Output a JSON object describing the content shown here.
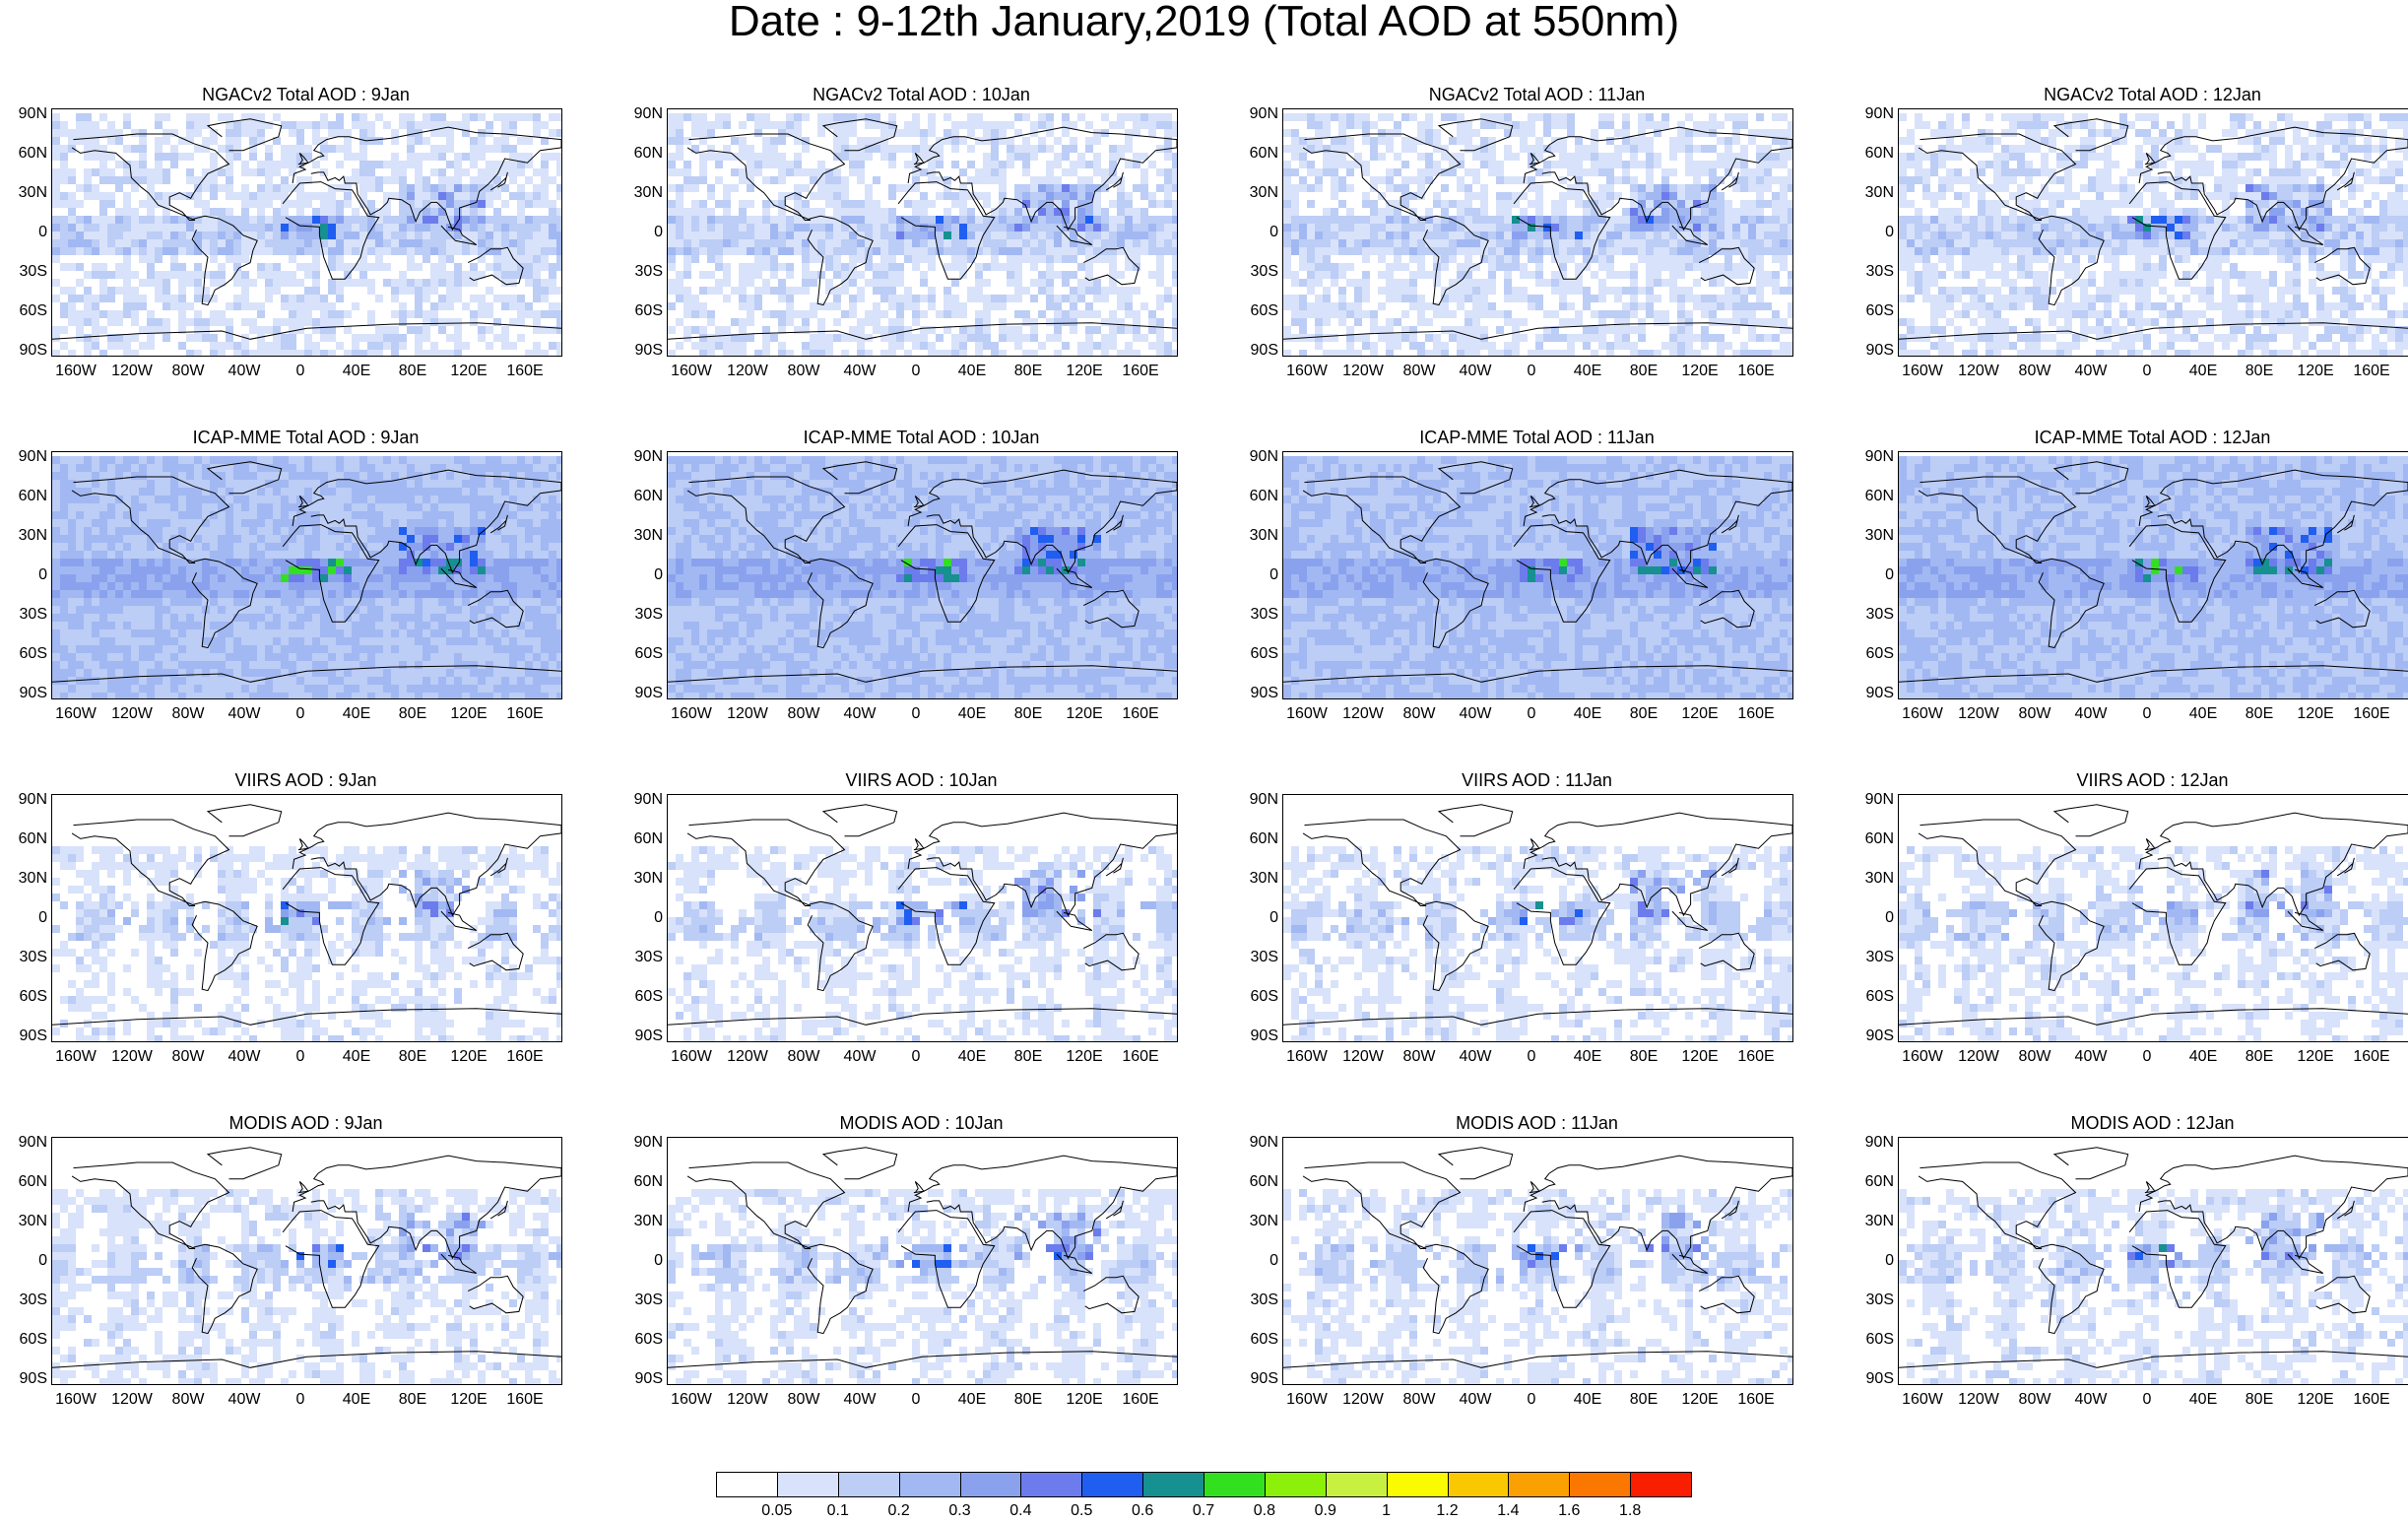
{
  "title": "Date : 9-12th January,2019 (Total AOD at 550nm)",
  "axes": {
    "lat_ticks": [
      "90N",
      "60N",
      "30N",
      "0",
      "30S",
      "60S",
      "90S"
    ],
    "lon_ticks": [
      "160W",
      "120W",
      "80W",
      "40W",
      "0",
      "40E",
      "80E",
      "120E",
      "160E"
    ]
  },
  "panels": [
    {
      "title": "NGACv2 Total AOD : 9Jan",
      "product": "NGACv2",
      "day": "9Jan"
    },
    {
      "title": "NGACv2 Total AOD : 10Jan",
      "product": "NGACv2",
      "day": "10Jan"
    },
    {
      "title": "NGACv2 Total AOD : 11Jan",
      "product": "NGACv2",
      "day": "11Jan"
    },
    {
      "title": "NGACv2 Total AOD : 12Jan",
      "product": "NGACv2",
      "day": "12Jan"
    },
    {
      "title": "ICAP-MME Total AOD : 9Jan",
      "product": "ICAP-MME",
      "day": "9Jan"
    },
    {
      "title": "ICAP-MME Total AOD : 10Jan",
      "product": "ICAP-MME",
      "day": "10Jan"
    },
    {
      "title": "ICAP-MME Total AOD : 11Jan",
      "product": "ICAP-MME",
      "day": "11Jan"
    },
    {
      "title": "ICAP-MME Total AOD : 12Jan",
      "product": "ICAP-MME",
      "day": "12Jan"
    },
    {
      "title": "VIIRS AOD : 9Jan",
      "product": "VIIRS",
      "day": "9Jan"
    },
    {
      "title": "VIIRS AOD : 10Jan",
      "product": "VIIRS",
      "day": "10Jan"
    },
    {
      "title": "VIIRS AOD : 11Jan",
      "product": "VIIRS",
      "day": "11Jan"
    },
    {
      "title": "VIIRS AOD : 12Jan",
      "product": "VIIRS",
      "day": "12Jan"
    },
    {
      "title": "MODIS AOD : 9Jan",
      "product": "MODIS",
      "day": "9Jan"
    },
    {
      "title": "MODIS AOD : 10Jan",
      "product": "MODIS",
      "day": "10Jan"
    },
    {
      "title": "MODIS AOD : 11Jan",
      "product": "MODIS",
      "day": "11Jan"
    },
    {
      "title": "MODIS AOD : 12Jan",
      "product": "MODIS",
      "day": "12Jan"
    }
  ],
  "colorbar": {
    "labels": [
      "0.05",
      "0.1",
      "0.2",
      "0.3",
      "0.4",
      "0.5",
      "0.6",
      "0.7",
      "0.8",
      "0.9",
      "1",
      "1.2",
      "1.4",
      "1.6",
      "1.8"
    ],
    "colors": [
      "#ffffff",
      "#d8e2fa",
      "#bccdf6",
      "#a2b8f2",
      "#8aa2ee",
      "#6c7cec",
      "#1f5ef0",
      "#169090",
      "#32e020",
      "#8cf00a",
      "#c8f040",
      "#fafa00",
      "#fac800",
      "#faa000",
      "#fa7800",
      "#fa1e00"
    ]
  },
  "style": {
    "land_outline": "#000000",
    "low_aod": "#d8e2fa",
    "moderate_aod": "#a2b8f2",
    "elevated_aod": "#6c7cec"
  }
}
